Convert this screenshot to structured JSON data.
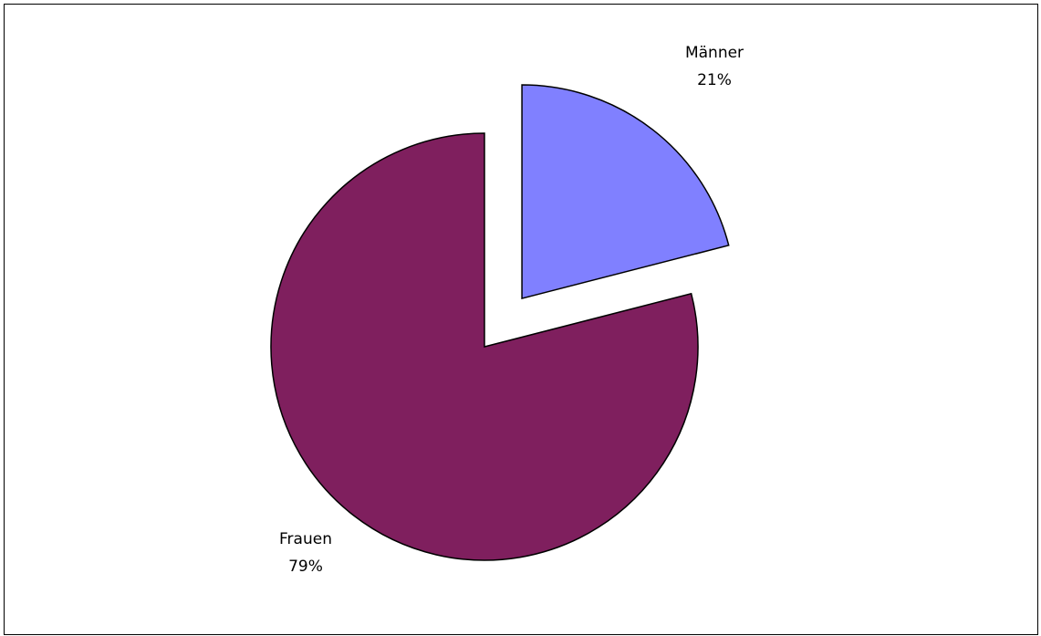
{
  "chart_data": {
    "type": "pie",
    "title": "",
    "slices": [
      {
        "label": "Männer",
        "value": 21,
        "value_label": "21%",
        "color": "#8080FF",
        "exploded": true
      },
      {
        "label": "Frauen",
        "value": 79,
        "value_label": "79%",
        "color": "#7F1F5E",
        "exploded": false
      }
    ],
    "start": "12 o'clock",
    "direction": "clockwise",
    "legend": "none",
    "border_color": "#000000"
  }
}
